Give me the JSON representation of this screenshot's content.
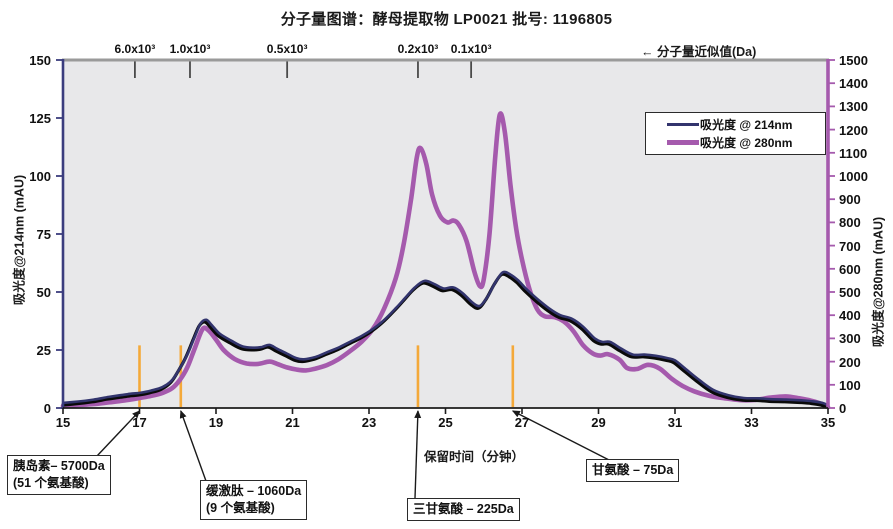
{
  "chart_data": {
    "type": "line",
    "title": "分子量图谱：酵母提取物 LP0021  批号: 1196805",
    "x_axis": {
      "label": "保留时间（分钟）",
      "min": 15,
      "max": 35,
      "ticks": [
        15,
        17,
        19,
        21,
        23,
        25,
        27,
        29,
        31,
        33,
        35
      ]
    },
    "y_left": {
      "label": "吸光度@214nm (mAU)",
      "min": 0,
      "max": 150,
      "ticks": [
        0,
        25,
        50,
        75,
        100,
        125,
        150
      ]
    },
    "y_right": {
      "label": "吸光度@280nm (mAU)",
      "min": 0,
      "max": 1500,
      "ticks": [
        0,
        100,
        200,
        300,
        400,
        500,
        600,
        700,
        800,
        900,
        1000,
        1100,
        1200,
        1300,
        1400,
        1500
      ]
    },
    "top_axis": {
      "label": "← 分子量近似值(Da)",
      "ticks": [
        {
          "label": "6.0x10³",
          "t": 16.88
        },
        {
          "label": "1.0x10³",
          "t": 18.32
        },
        {
          "label": "0.5x10³",
          "t": 20.86
        },
        {
          "label": "0.2x10³",
          "t": 24.28
        },
        {
          "label": "0.1x10³",
          "t": 25.67
        }
      ]
    },
    "legend": [
      {
        "label": "吸光度 @ 214nm",
        "color": "#32346d"
      },
      {
        "label": "吸光度 @ 280nm",
        "color": "#a55aad"
      }
    ],
    "colors": {
      "abs214": "#32346d",
      "abs214_shadow": "#0a0a0a",
      "abs280": "#a55aad",
      "marker_orange": "#f4a93a",
      "plot_bg": "#e8e8ea",
      "top_spine": "#9a9a9a",
      "bottom_spine": "#1c1c1c"
    },
    "series": [
      {
        "name": "吸光度 @ 214nm",
        "axis": "left",
        "color": "#32346d",
        "points": [
          [
            15,
            2.2
          ],
          [
            15.4,
            2.8
          ],
          [
            15.8,
            3.6
          ],
          [
            16.2,
            4.8
          ],
          [
            16.5,
            5.5
          ],
          [
            16.8,
            6.2
          ],
          [
            17,
            6.5
          ],
          [
            17.3,
            7.5
          ],
          [
            17.6,
            9
          ],
          [
            17.85,
            12
          ],
          [
            18.05,
            17
          ],
          [
            18.25,
            23
          ],
          [
            18.45,
            31
          ],
          [
            18.6,
            36.5
          ],
          [
            18.75,
            38
          ],
          [
            18.9,
            35.5
          ],
          [
            19.1,
            32
          ],
          [
            19.4,
            29
          ],
          [
            19.7,
            26.5
          ],
          [
            20,
            26
          ],
          [
            20.2,
            26.3
          ],
          [
            20.4,
            27.2
          ],
          [
            20.6,
            25.5
          ],
          [
            20.85,
            23.5
          ],
          [
            21.1,
            21.5
          ],
          [
            21.3,
            21
          ],
          [
            21.6,
            22
          ],
          [
            21.9,
            24
          ],
          [
            22.2,
            26
          ],
          [
            22.5,
            28.5
          ],
          [
            22.8,
            31
          ],
          [
            23.1,
            34
          ],
          [
            23.4,
            38
          ],
          [
            23.7,
            43
          ],
          [
            23.95,
            47.5
          ],
          [
            24.2,
            52
          ],
          [
            24.45,
            54.8
          ],
          [
            24.7,
            53.5
          ],
          [
            24.95,
            51.5
          ],
          [
            25.2,
            52
          ],
          [
            25.45,
            49.5
          ],
          [
            25.7,
            45.5
          ],
          [
            25.9,
            44
          ],
          [
            26.1,
            48
          ],
          [
            26.3,
            54
          ],
          [
            26.5,
            58.5
          ],
          [
            26.7,
            57.5
          ],
          [
            26.9,
            55
          ],
          [
            27.1,
            51.5
          ],
          [
            27.4,
            47
          ],
          [
            27.7,
            43
          ],
          [
            28,
            40
          ],
          [
            28.3,
            38.5
          ],
          [
            28.6,
            35
          ],
          [
            28.9,
            30
          ],
          [
            29.1,
            28.5
          ],
          [
            29.3,
            28.5
          ],
          [
            29.6,
            25.5
          ],
          [
            29.9,
            23
          ],
          [
            30.2,
            23
          ],
          [
            30.5,
            22.5
          ],
          [
            30.8,
            21.5
          ],
          [
            31,
            20.5
          ],
          [
            31.3,
            16.5
          ],
          [
            31.6,
            12.5
          ],
          [
            32,
            7.8
          ],
          [
            32.4,
            5.5
          ],
          [
            32.8,
            4.3
          ],
          [
            33.2,
            4.2
          ],
          [
            33.5,
            3.8
          ],
          [
            33.9,
            3.6
          ],
          [
            34.3,
            3.3
          ],
          [
            34.6,
            2.9
          ],
          [
            34.85,
            2.2
          ],
          [
            35,
            1.2
          ]
        ]
      },
      {
        "name": "吸光度 @ 280nm",
        "axis": "right",
        "color": "#a55aad",
        "points": [
          [
            15,
            9
          ],
          [
            15.4,
            13
          ],
          [
            15.8,
            17
          ],
          [
            16.2,
            24
          ],
          [
            16.5,
            30
          ],
          [
            16.8,
            37
          ],
          [
            17,
            43
          ],
          [
            17.3,
            52
          ],
          [
            17.6,
            65
          ],
          [
            17.85,
            85
          ],
          [
            18.05,
            120
          ],
          [
            18.25,
            175
          ],
          [
            18.45,
            260
          ],
          [
            18.65,
            340
          ],
          [
            18.8,
            335
          ],
          [
            19,
            295
          ],
          [
            19.2,
            250
          ],
          [
            19.5,
            210
          ],
          [
            19.8,
            192
          ],
          [
            20.1,
            190
          ],
          [
            20.4,
            200
          ],
          [
            20.6,
            190
          ],
          [
            20.85,
            175
          ],
          [
            21.1,
            166
          ],
          [
            21.35,
            162
          ],
          [
            21.6,
            170
          ],
          [
            21.9,
            185
          ],
          [
            22.2,
            210
          ],
          [
            22.5,
            245
          ],
          [
            22.8,
            285
          ],
          [
            23.1,
            340
          ],
          [
            23.4,
            430
          ],
          [
            23.7,
            560
          ],
          [
            23.9,
            700
          ],
          [
            24.1,
            900
          ],
          [
            24.25,
            1080
          ],
          [
            24.35,
            1120
          ],
          [
            24.5,
            1050
          ],
          [
            24.65,
            920
          ],
          [
            24.85,
            830
          ],
          [
            25.05,
            800
          ],
          [
            25.2,
            808
          ],
          [
            25.35,
            790
          ],
          [
            25.55,
            720
          ],
          [
            25.75,
            590
          ],
          [
            25.9,
            525
          ],
          [
            26,
            555
          ],
          [
            26.15,
            750
          ],
          [
            26.3,
            1080
          ],
          [
            26.42,
            1265
          ],
          [
            26.55,
            1190
          ],
          [
            26.7,
            960
          ],
          [
            26.85,
            770
          ],
          [
            27,
            640
          ],
          [
            27.2,
            510
          ],
          [
            27.4,
            425
          ],
          [
            27.6,
            395
          ],
          [
            27.85,
            392
          ],
          [
            28.1,
            372
          ],
          [
            28.35,
            330
          ],
          [
            28.6,
            270
          ],
          [
            28.85,
            235
          ],
          [
            29.05,
            226
          ],
          [
            29.25,
            232
          ],
          [
            29.55,
            208
          ],
          [
            29.75,
            172
          ],
          [
            30,
            168
          ],
          [
            30.3,
            186
          ],
          [
            30.6,
            170
          ],
          [
            30.9,
            128
          ],
          [
            31.2,
            95
          ],
          [
            31.5,
            72
          ],
          [
            31.9,
            52
          ],
          [
            32.3,
            42
          ],
          [
            32.7,
            34
          ],
          [
            33.1,
            35
          ],
          [
            33.5,
            45
          ],
          [
            33.9,
            50
          ],
          [
            34.25,
            42
          ],
          [
            34.55,
            32
          ],
          [
            34.8,
            20
          ],
          [
            34.95,
            10
          ],
          [
            35,
            4
          ]
        ]
      }
    ],
    "peak_markers": {
      "color": "#f4a93a",
      "top_value_mAU": 27,
      "t_values": [
        17.0,
        18.08,
        24.28,
        26.76
      ]
    },
    "annotations": [
      {
        "lines": [
          "胰岛素– 5700Da",
          "(51 个氨基酸)"
        ],
        "target_t": 17.0
      },
      {
        "lines": [
          "缓激肽 – 1060Da",
          "(9 个氨基酸)"
        ],
        "target_t": 18.08
      },
      {
        "lines": [
          "三甘氨酸 – 225Da"
        ],
        "target_t": 24.28
      },
      {
        "lines": [
          "甘氨酸 – 75Da"
        ],
        "target_t": 26.76
      }
    ]
  }
}
